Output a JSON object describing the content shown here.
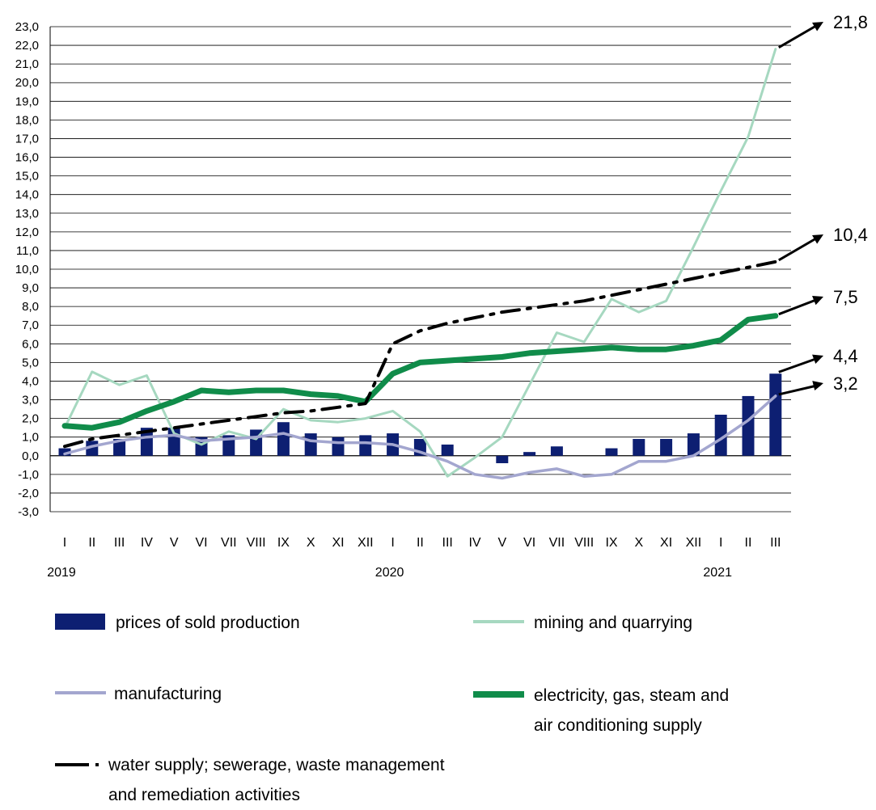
{
  "chart_data": {
    "type": "bar+line",
    "ylim": [
      -3.0,
      23.0
    ],
    "y_ticks": [
      "-3,0",
      "-2,0",
      "-1,0",
      "0,0",
      "1,0",
      "2,0",
      "3,0",
      "4,0",
      "5,0",
      "6,0",
      "7,0",
      "8,0",
      "9,0",
      "10,0",
      "11,0",
      "12,0",
      "13,0",
      "14,0",
      "15,0",
      "16,0",
      "17,0",
      "18,0",
      "19,0",
      "20,0",
      "21,0",
      "22,0",
      "23,0"
    ],
    "grid": "horizontal",
    "categories": [
      "I",
      "II",
      "III",
      "IV",
      "V",
      "VI",
      "VII",
      "VIII",
      "IX",
      "X",
      "XI",
      "XII",
      "I",
      "II",
      "III",
      "IV",
      "V",
      "VI",
      "VII",
      "VIII",
      "IX",
      "X",
      "XI",
      "XII",
      "I",
      "II",
      "III"
    ],
    "years": [
      {
        "label": "2019",
        "index": 0
      },
      {
        "label": "2020",
        "index": 12
      },
      {
        "label": "2021",
        "index": 24
      }
    ],
    "series": [
      {
        "name": "prices of sold production",
        "kind": "bar",
        "color": "#0d1f72",
        "values": [
          0.4,
          0.8,
          0.9,
          1.5,
          1.5,
          1.0,
          1.1,
          1.4,
          1.8,
          1.2,
          1.0,
          1.1,
          1.2,
          0.9,
          0.6,
          0.0,
          -0.4,
          0.2,
          0.5,
          0.0,
          0.4,
          0.9,
          0.9,
          1.2,
          2.2,
          3.2,
          4.4
        ]
      },
      {
        "name": "mining and quarrying",
        "kind": "line",
        "color": "#a6d8c0",
        "values": [
          1.5,
          4.5,
          3.8,
          4.3,
          1.2,
          0.6,
          1.3,
          0.9,
          2.5,
          1.9,
          1.8,
          2.0,
          2.4,
          1.3,
          -1.1,
          -0.1,
          1.0,
          3.8,
          6.6,
          6.1,
          8.4,
          7.7,
          8.3,
          11.2,
          14.2,
          17.1,
          21.8
        ]
      },
      {
        "name": "manufacturing",
        "kind": "line",
        "color": "#a3a6cf",
        "values": [
          0.1,
          0.5,
          0.8,
          1.0,
          1.1,
          0.8,
          0.9,
          1.0,
          1.2,
          0.8,
          0.7,
          0.7,
          0.6,
          0.2,
          -0.3,
          -1.0,
          -1.2,
          -0.9,
          -0.7,
          -1.1,
          -1.0,
          -0.3,
          -0.3,
          0.0,
          0.9,
          1.9,
          3.2
        ]
      },
      {
        "name": "electricity, gas, steam and air conditioning supply",
        "kind": "line",
        "color": "#108c4a",
        "values": [
          1.6,
          1.5,
          1.8,
          2.4,
          2.9,
          3.5,
          3.4,
          3.5,
          3.5,
          3.3,
          3.2,
          2.9,
          4.4,
          5.0,
          5.1,
          5.2,
          5.3,
          5.5,
          5.6,
          5.7,
          5.8,
          5.7,
          5.7,
          5.9,
          6.2,
          7.3,
          7.5
        ]
      },
      {
        "name": "water supply; sewerage, waste management and remediation activities",
        "kind": "line",
        "color": "#000000",
        "values": [
          0.5,
          0.9,
          1.1,
          1.3,
          1.5,
          1.7,
          1.9,
          2.1,
          2.3,
          2.4,
          2.6,
          2.8,
          6.0,
          6.7,
          7.1,
          7.4,
          7.7,
          7.9,
          8.1,
          8.3,
          8.6,
          8.9,
          9.2,
          9.5,
          9.8,
          10.1,
          10.4
        ]
      }
    ],
    "annotations": [
      "21,8",
      "10,4",
      "7,5",
      "4,4",
      "3,2"
    ]
  },
  "legend": {
    "items": [
      {
        "label": "prices of sold production",
        "icon": "bar-swatch"
      },
      {
        "label": "mining and quarrying",
        "icon": "line-swatch"
      },
      {
        "label": "manufacturing",
        "icon": "line-swatch"
      },
      {
        "label": "electricity, gas, steam and",
        "label2": "air conditioning supply",
        "icon": "thick-line-swatch"
      },
      {
        "label": "water supply; sewerage, waste management",
        "label2": "and remediation activities",
        "icon": "dash-dot-swatch"
      }
    ]
  }
}
